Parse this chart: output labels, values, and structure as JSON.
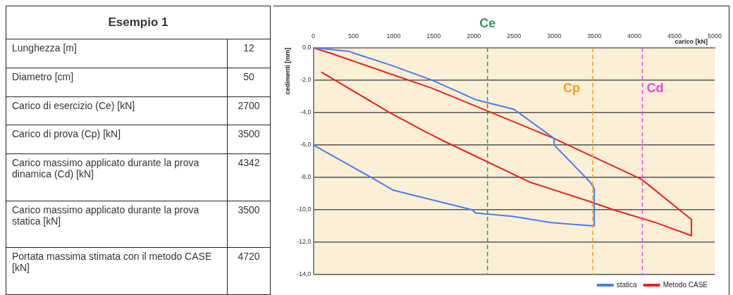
{
  "chart_data": [
    {
      "type": "other",
      "title": "Esempio 1",
      "annotations": [
        "Lunghezza [m]",
        "12",
        "Diametro [cm]",
        "50",
        "Carico di esercizio (Ce) [kN]",
        "2700",
        "Carico di prova (Cp) [kN]",
        "3500",
        "Carico massimo applicato durante la prova dinamica (Cd) [kN]",
        "4342",
        "Carico massimo applicato durante la prova statica [kN]",
        "3500",
        "Portata massima stimata con il metodo CASE [kN]",
        "4720"
      ]
    },
    {
      "type": "line",
      "xlabel": "carico [kN]",
      "ylabel": "cedimenti [mm]",
      "xlim": [
        0,
        5000
      ],
      "xticks": [
        0,
        500,
        1000,
        1500,
        2000,
        2500,
        3000,
        3500,
        4000,
        4500,
        5000
      ],
      "ylim": [
        -14,
        0
      ],
      "yticks": [
        {
          "value": 0,
          "label": "0,0"
        },
        {
          "value": -2,
          "label": "-2,0"
        },
        {
          "value": -4,
          "label": "-4,0"
        },
        {
          "value": -6,
          "label": "-6,0"
        },
        {
          "value": -8,
          "label": "-8,0"
        },
        {
          "value": -10,
          "label": "-10,0"
        },
        {
          "value": -12,
          "label": "-12,0"
        },
        {
          "value": -14,
          "label": "-14,0"
        }
      ],
      "grid": "y",
      "legend": "bottom right",
      "marker": "none",
      "line_style": "solid",
      "series": [
        {
          "name": "statica",
          "color": "#4a7cf0",
          "x": [
            0,
            450,
            560,
            980,
            1480,
            2020,
            2500,
            3000,
            3000,
            3450,
            3500,
            3500,
            2970,
            2480,
            2020,
            1980,
            1000,
            720,
            0
          ],
          "values": [
            0,
            -0.23,
            -0.42,
            -1.1,
            -2.0,
            -3.2,
            -3.8,
            -5.6,
            -6.0,
            -8.3,
            -8.7,
            -11.0,
            -10.8,
            -10.4,
            -10.2,
            -10.0,
            -8.8,
            -8.0,
            -6.0
          ]
        },
        {
          "name": "Metodo CASE",
          "color": "#ee2020",
          "x": [
            0,
            250,
            1480,
            2170,
            3000,
            3170,
            4080,
            4160,
            4560,
            4710,
            4710,
            4270,
            3740,
            3450,
            2700,
            1600,
            1400,
            950,
            100
          ],
          "values": [
            0,
            -0.4,
            -2.5,
            -3.9,
            -5.6,
            -6.0,
            -8.1,
            -8.4,
            -10.0,
            -10.6,
            -11.6,
            -10.8,
            -10.0,
            -9.5,
            -8.3,
            -5.7,
            -5.2,
            -4.0,
            -1.5
          ]
        }
      ],
      "ref_lines": [
        {
          "axis": "x",
          "value": 2170,
          "label": "Ce",
          "color": "#2e9a5a",
          "line_style": "dashed"
        },
        {
          "axis": "x",
          "value": 3480,
          "label": "Cp",
          "color": "#f0a020",
          "line_style": "dashed"
        },
        {
          "axis": "x",
          "value": 4100,
          "label": "Cd",
          "color": "#ee44ee",
          "line_style": "dashed"
        }
      ]
    }
  ]
}
